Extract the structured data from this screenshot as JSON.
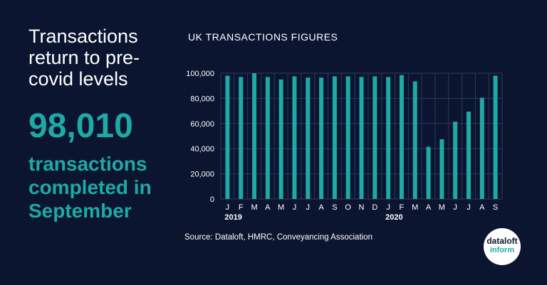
{
  "headline": "Transactions return to pre-covid levels",
  "highlight": {
    "value": "98,010",
    "caption": "transactions completed in September"
  },
  "source": "Source:  Dataloft, HMRC, Conveyancing Association",
  "logo": {
    "line1": "dataloft",
    "line2": "inform"
  },
  "colors": {
    "background": "#0b1530",
    "accent": "#1fa9a6",
    "text": "#ffffff"
  },
  "chart_data": {
    "type": "bar",
    "title": "UK TRANSACTIONS FIGURES",
    "xlabel": "",
    "ylabel": "",
    "categories": [
      "J",
      "F",
      "M",
      "A",
      "M",
      "J",
      "J",
      "A",
      "S",
      "O",
      "N",
      "D",
      "J",
      "F",
      "M",
      "A",
      "M",
      "J",
      "J",
      "A",
      "S"
    ],
    "year_labels": [
      {
        "index": 0,
        "label": "2019"
      },
      {
        "index": 12,
        "label": "2020"
      }
    ],
    "values": [
      98000,
      97000,
      100000,
      97000,
      95000,
      97500,
      96500,
      96500,
      97500,
      97500,
      97000,
      97500,
      97000,
      98500,
      93500,
      41500,
      47500,
      61500,
      69500,
      80500,
      98010
    ],
    "ylim": [
      0,
      100000
    ],
    "yticks": [
      0,
      20000,
      40000,
      60000,
      80000,
      100000
    ],
    "ytick_labels": [
      "0",
      "20,000",
      "40,000",
      "60,000",
      "80,000",
      "100,000"
    ],
    "grid": true,
    "bar_color": "#1fa9a6"
  }
}
